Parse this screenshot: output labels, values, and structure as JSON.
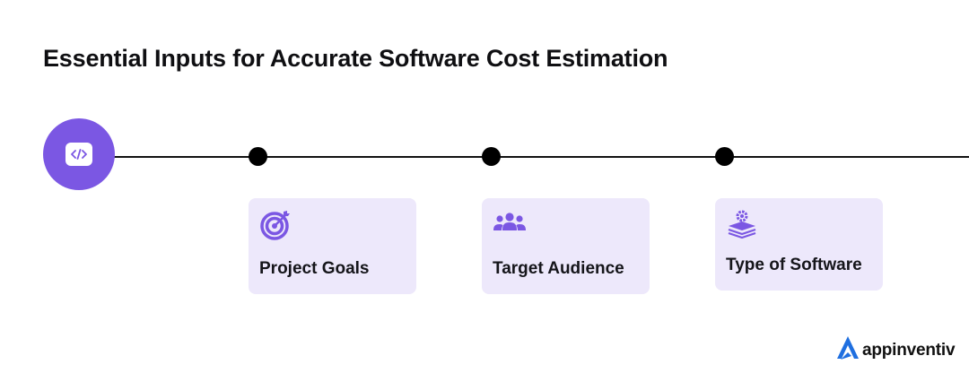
{
  "title": "Essential Inputs for Accurate Software Cost Estimation",
  "steps": [
    {
      "label": "Project Goals",
      "icon": "target-icon"
    },
    {
      "label": "Target Audience",
      "icon": "users-icon"
    },
    {
      "label": "Type of Software",
      "icon": "layers-gear-icon"
    }
  ],
  "start_icon": "code-icon",
  "brand": {
    "name": "appinventiv",
    "logo_icon": "appinventiv-logo-icon"
  },
  "colors": {
    "accent": "#7b57e3",
    "card_bg": "#ede8fb",
    "line": "#111111",
    "brand_blue": "#1f6fe0"
  }
}
